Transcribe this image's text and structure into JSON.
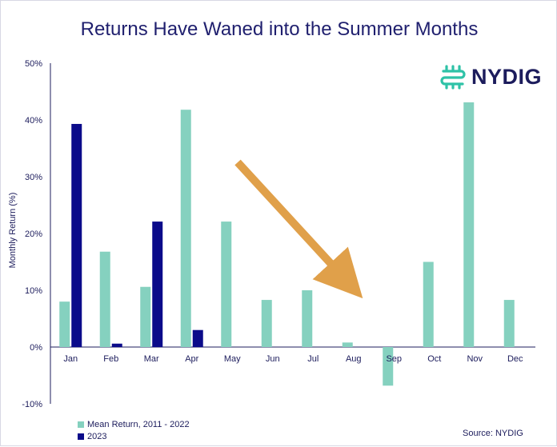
{
  "title": "Returns Have Waned into the Summer Months",
  "logo_text": "NYDIG",
  "source": "Source: NYDIG",
  "colors": {
    "mean": "#85d1bf",
    "y2023": "#0b0b8a",
    "arrow": "#e0a04a",
    "axis": "#1c1c5c",
    "title": "#1f1f6e",
    "logo_icon": "#2ec2a7"
  },
  "chart_data": {
    "type": "bar",
    "categories": [
      "Jan",
      "Feb",
      "Mar",
      "Apr",
      "May",
      "Jun",
      "Jul",
      "Aug",
      "Sep",
      "Oct",
      "Nov",
      "Dec"
    ],
    "series": [
      {
        "name": "Mean Return, 2011 - 2022",
        "values": [
          8.0,
          16.8,
          10.6,
          41.8,
          22.1,
          8.3,
          10.0,
          0.8,
          -6.8,
          15.0,
          43.1,
          8.3
        ]
      },
      {
        "name": "2023",
        "values": [
          39.3,
          0.6,
          22.1,
          3.0,
          null,
          null,
          null,
          null,
          null,
          null,
          null,
          null
        ]
      }
    ],
    "ylabel": "Monthly Return (%)",
    "ylim": [
      -10,
      50
    ],
    "yticks": [
      -10,
      0,
      10,
      20,
      30,
      40,
      50
    ],
    "ytick_labels": [
      "-10%",
      "0%",
      "10%",
      "20%",
      "30%",
      "40%",
      "50%"
    ],
    "grid": false,
    "legend_position": "bottom-left",
    "annotation": "downward arrow from Apr–May toward Aug"
  }
}
